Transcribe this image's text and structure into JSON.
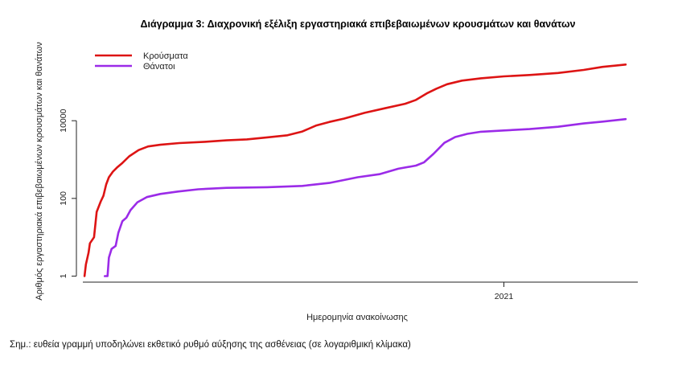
{
  "note": "Σημ.: ευθεία γραμμή υποδηλώνει εκθετικό ρυθμό αύξησης της ασθένειας (σε λογαριθμική κλίμακα)",
  "chart_data": {
    "type": "line",
    "title": "Διάγραμμα 3: Διαχρονική εξέλιξη εργαστηριακά επιβεβαιωμένων κρουσμάτων και θανάτων",
    "xlabel": "Ημερομηνία ανακοίνωσης",
    "ylabel": "Αριθμός εργαστηριακά επιβεβαιωμένων κρουσμάτων και θανάτων",
    "y_scale": "log",
    "y_ticks": [
      1,
      100,
      10000
    ],
    "y_tick_labels": [
      "1",
      "100",
      "10000"
    ],
    "x_ticks": [
      "2021-01-01"
    ],
    "x_tick_labels": [
      "2021"
    ],
    "xlim": [
      "2020-02-20",
      "2021-04-10"
    ],
    "ylim": [
      0.7,
      1500000
    ],
    "grid": false,
    "legend": "top-left",
    "series": [
      {
        "name": "Κρούσματα",
        "color": "#dd1414",
        "points": [
          [
            "2020-02-26",
            1
          ],
          [
            "2020-02-27",
            2
          ],
          [
            "2020-02-29",
            4
          ],
          [
            "2020-03-01",
            7
          ],
          [
            "2020-03-04",
            10
          ],
          [
            "2020-03-06",
            45
          ],
          [
            "2020-03-09",
            84
          ],
          [
            "2020-03-11",
            117
          ],
          [
            "2020-03-13",
            228
          ],
          [
            "2020-03-15",
            350
          ],
          [
            "2020-03-18",
            490
          ],
          [
            "2020-03-21",
            624
          ],
          [
            "2020-03-25",
            821
          ],
          [
            "2020-03-30",
            1212
          ],
          [
            "2020-04-06",
            1755
          ],
          [
            "2020-04-13",
            2170
          ],
          [
            "2020-04-22",
            2408
          ],
          [
            "2020-05-06",
            2663
          ],
          [
            "2020-05-25",
            2873
          ],
          [
            "2020-06-10",
            3121
          ],
          [
            "2020-06-25",
            3310
          ],
          [
            "2020-07-10",
            3732
          ],
          [
            "2020-07-25",
            4227
          ],
          [
            "2020-08-05",
            5270
          ],
          [
            "2020-08-15",
            7472
          ],
          [
            "2020-08-25",
            9280
          ],
          [
            "2020-09-05",
            11386
          ],
          [
            "2020-09-20",
            15928
          ],
          [
            "2020-10-05",
            20947
          ],
          [
            "2020-10-20",
            27334
          ],
          [
            "2020-10-28",
            34299
          ],
          [
            "2020-11-05",
            50351
          ],
          [
            "2020-11-12",
            66637
          ],
          [
            "2020-11-20",
            87000
          ],
          [
            "2020-12-01",
            107470
          ],
          [
            "2020-12-15",
            123534
          ],
          [
            "2021-01-01",
            138850
          ],
          [
            "2021-01-20",
            150479
          ],
          [
            "2021-02-10",
            169000
          ],
          [
            "2021-03-01",
            203000
          ],
          [
            "2021-03-15",
            243000
          ],
          [
            "2021-04-01",
            279000
          ]
        ]
      },
      {
        "name": "Θάνατοι",
        "color": "#9b2be8",
        "points": [
          [
            "2020-03-12",
            1
          ],
          [
            "2020-03-14",
            1
          ],
          [
            "2020-03-15",
            3
          ],
          [
            "2020-03-17",
            5
          ],
          [
            "2020-03-20",
            6
          ],
          [
            "2020-03-22",
            13
          ],
          [
            "2020-03-25",
            26
          ],
          [
            "2020-03-28",
            32
          ],
          [
            "2020-03-31",
            50
          ],
          [
            "2020-04-05",
            79
          ],
          [
            "2020-04-12",
            108
          ],
          [
            "2020-04-22",
            130
          ],
          [
            "2020-05-05",
            150
          ],
          [
            "2020-05-20",
            172
          ],
          [
            "2020-06-10",
            187
          ],
          [
            "2020-07-10",
            194
          ],
          [
            "2020-08-05",
            210
          ],
          [
            "2020-08-25",
            250
          ],
          [
            "2020-09-15",
            350
          ],
          [
            "2020-10-01",
            420
          ],
          [
            "2020-10-15",
            580
          ],
          [
            "2020-10-28",
            700
          ],
          [
            "2020-11-03",
            850
          ],
          [
            "2020-11-10",
            1400
          ],
          [
            "2020-11-18",
            2700
          ],
          [
            "2020-11-26",
            3800
          ],
          [
            "2020-12-05",
            4600
          ],
          [
            "2020-12-15",
            5200
          ],
          [
            "2021-01-01",
            5600
          ],
          [
            "2021-01-20",
            6100
          ],
          [
            "2021-02-10",
            7000
          ],
          [
            "2021-03-01",
            8500
          ],
          [
            "2021-03-15",
            9500
          ],
          [
            "2021-04-01",
            11000
          ]
        ]
      }
    ]
  }
}
